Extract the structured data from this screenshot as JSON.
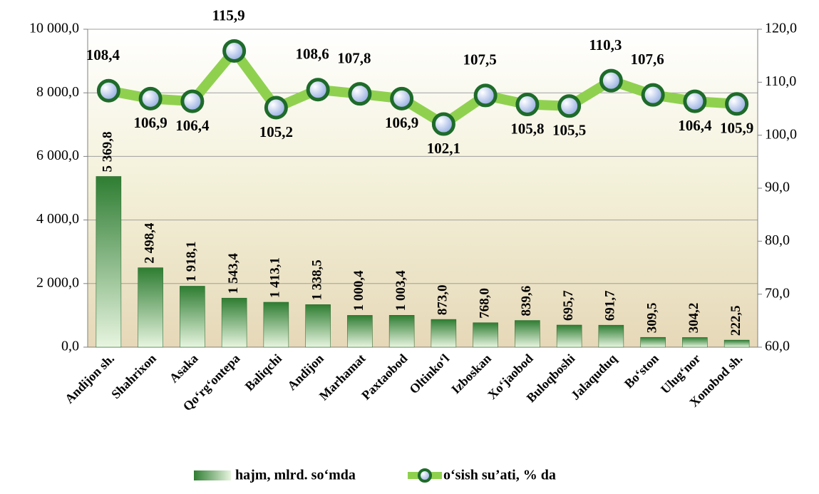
{
  "chart_data": {
    "type": "bar-line",
    "categories": [
      "Andijon sh.",
      "Shahrixon",
      "Asaka",
      "Qo‘rg‘ontepa",
      "Baliqchi",
      "Andijon",
      "Marhamat",
      "Paxtaobod",
      "Oltinko‘l",
      "Izboskan",
      "Xo‘jaobod",
      "Buloqboshi",
      "Jalaquduq",
      "Bo‘ston",
      "Ulug‘nor",
      "Xonobod sh."
    ],
    "series": [
      {
        "name": "hajm, mlrd. so‘mda",
        "type": "bar",
        "color": "#2e7d32",
        "values": [
          5369.8,
          2498.4,
          1918.1,
          1543.4,
          1413.1,
          1338.5,
          1000.4,
          1003.4,
          873.0,
          768.0,
          839.6,
          695.7,
          691.7,
          309.5,
          304.2,
          222.5
        ],
        "value_labels": [
          "5 369,8",
          "2 498,4",
          "1 918,1",
          "1 543,4",
          "1 413,1",
          "1 338,5",
          "1 000,4",
          "1 003,4",
          "873,0",
          "768,0",
          "839,6",
          "695,7",
          "691,7",
          "309,5",
          "304,2",
          "222,5"
        ]
      },
      {
        "name": "o‘sish su’ati, % da",
        "type": "line",
        "axis": "y2",
        "color": "#8fd14f",
        "values": [
          108.4,
          106.9,
          106.4,
          115.9,
          105.2,
          108.6,
          107.8,
          106.9,
          102.1,
          107.5,
          105.8,
          105.5,
          110.3,
          107.6,
          106.4,
          105.9
        ],
        "value_labels": [
          "108,4",
          "106,9",
          "106,4",
          "115,9",
          "105,2",
          "108,6",
          "107,8",
          "106,9",
          "102,1",
          "107,5",
          "105,8",
          "105,5",
          "110,3",
          "107,6",
          "106,4",
          "105,9"
        ]
      }
    ],
    "ylim": [
      0,
      10000
    ],
    "yticks": [
      {
        "value": 0,
        "label": "0,0"
      },
      {
        "value": 2000,
        "label": "2 000,0"
      },
      {
        "value": 4000,
        "label": "4 000,0"
      },
      {
        "value": 6000,
        "label": "6 000,0"
      },
      {
        "value": 8000,
        "label": "8 000,0"
      },
      {
        "value": 10000,
        "label": "10 000,0"
      }
    ],
    "y2lim": [
      60,
      120
    ],
    "y2ticks": [
      {
        "value": 60,
        "label": "60,0"
      },
      {
        "value": 70,
        "label": "70,0"
      },
      {
        "value": 80,
        "label": "80,0"
      },
      {
        "value": 90,
        "label": "90,0"
      },
      {
        "value": 100,
        "label": "100,0"
      },
      {
        "value": 110,
        "label": "110,0"
      },
      {
        "value": 120,
        "label": "120,0"
      }
    ],
    "grid": true,
    "legend": "bottom"
  }
}
